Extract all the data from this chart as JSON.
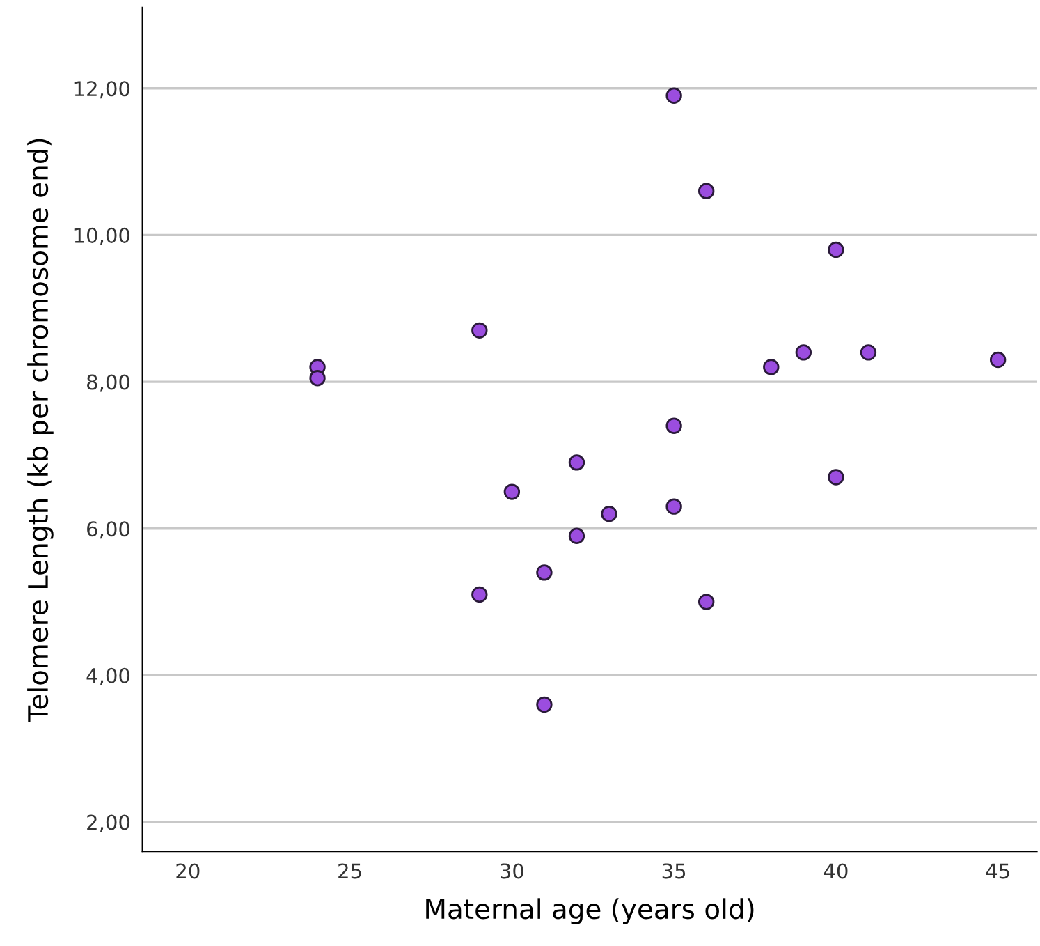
{
  "chart_data": {
    "type": "scatter",
    "xlabel": "Maternal age (years old)",
    "ylabel": "Telomere Length (kb per chromosome end)",
    "x": [
      24,
      24,
      29,
      29,
      30,
      31,
      31,
      32,
      32,
      33,
      35,
      35,
      35,
      36,
      36,
      38,
      39,
      40,
      40,
      41,
      45
    ],
    "values": [
      8.2,
      8.05,
      8.7,
      5.1,
      6.5,
      5.4,
      3.6,
      6.9,
      5.9,
      6.2,
      11.9,
      7.4,
      6.3,
      10.6,
      5.0,
      8.2,
      8.4,
      9.8,
      6.7,
      8.4,
      8.3
    ],
    "color": "#9b4ddf",
    "marker": "circle",
    "grid": "y",
    "xlim": [
      18.6,
      46.2
    ],
    "ylim": [
      1.6,
      13.1
    ],
    "xticks": [
      20,
      25,
      30,
      35,
      40,
      45
    ],
    "yticks": [
      {
        "value": 2,
        "label": "2,00"
      },
      {
        "value": 4,
        "label": "4,00"
      },
      {
        "value": 6,
        "label": "6,00"
      },
      {
        "value": 8,
        "label": "8,00"
      },
      {
        "value": 10,
        "label": "10,00"
      },
      {
        "value": 12,
        "label": "12,00"
      }
    ]
  }
}
